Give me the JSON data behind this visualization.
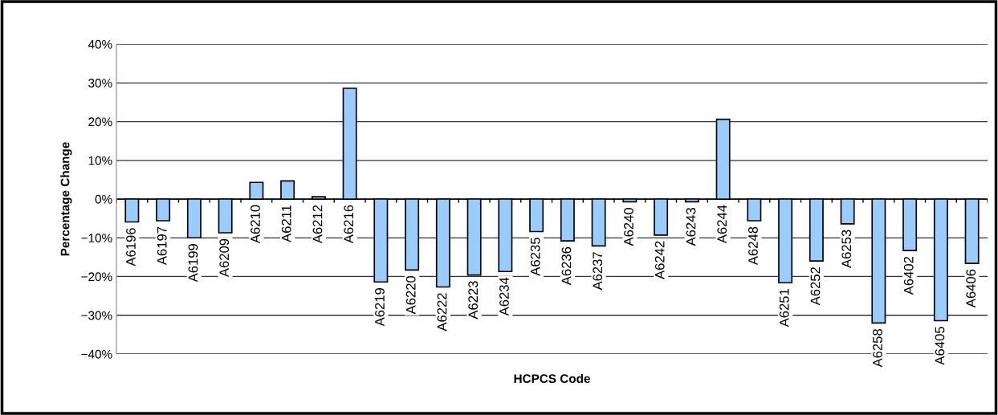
{
  "chart_data": {
    "type": "bar",
    "xlabel": "HCPCS Code",
    "ylabel": "Percentage Change",
    "categories": [
      "A6196",
      "A6197",
      "A6199",
      "A6209",
      "A6210",
      "A6211",
      "A6212",
      "A6216",
      "A6219",
      "A6220",
      "A6222",
      "A6223",
      "A6234",
      "A6235",
      "A6236",
      "A6237",
      "A6240",
      "A6242",
      "A6243",
      "A6244",
      "A6248",
      "A6251",
      "A6252",
      "A6253",
      "A6258",
      "A6402",
      "A6405",
      "A6406"
    ],
    "values": [
      -5.9,
      -5.6,
      -10.0,
      -8.7,
      4.3,
      4.7,
      0.6,
      28.6,
      -21.4,
      -18.3,
      -22.7,
      -19.6,
      -18.7,
      -8.4,
      -10.8,
      -12.1,
      -0.7,
      -9.3,
      -0.7,
      20.6,
      -5.6,
      -21.6,
      -16.0,
      -6.4,
      -32.0,
      -13.3,
      -31.4,
      -16.6
    ],
    "color": "#99ccff",
    "ylim": [
      -40,
      40
    ],
    "yticks": [
      {
        "value": -40,
        "label": "−40%"
      },
      {
        "value": -30,
        "label": "−30%"
      },
      {
        "value": -20,
        "label": "−20%"
      },
      {
        "value": -10,
        "label": "−10%"
      },
      {
        "value": 0,
        "label": "0%"
      },
      {
        "value": 10,
        "label": "10%"
      },
      {
        "value": 20,
        "label": "20%"
      },
      {
        "value": 30,
        "label": "30%"
      },
      {
        "value": 40,
        "label": "40%"
      }
    ],
    "grid": "y",
    "legend": false
  }
}
